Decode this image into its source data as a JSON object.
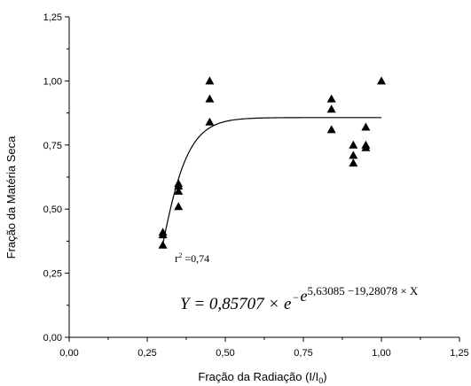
{
  "chart_data": {
    "type": "scatter",
    "xlabel": "Fração da Radiação (I/I",
    "xlabel_sub": "0",
    "xlabel_close": ")",
    "ylabel": "Fração da Matéria Seca",
    "xlim": [
      0.0,
      1.25
    ],
    "ylim": [
      0.0,
      1.25
    ],
    "x_ticks": [
      "0,00",
      "0,25",
      "0,50",
      "0,75",
      "1,00",
      "1,25"
    ],
    "y_ticks": [
      "0,00",
      "0,25",
      "0,50",
      "0,75",
      "1,00",
      "1,25"
    ],
    "grid": false,
    "marker": "triangle",
    "color": "#000000",
    "points": [
      {
        "x": 0.3,
        "y": 0.41
      },
      {
        "x": 0.3,
        "y": 0.4
      },
      {
        "x": 0.3,
        "y": 0.36
      },
      {
        "x": 0.35,
        "y": 0.6
      },
      {
        "x": 0.35,
        "y": 0.59
      },
      {
        "x": 0.35,
        "y": 0.57
      },
      {
        "x": 0.35,
        "y": 0.51
      },
      {
        "x": 0.45,
        "y": 1.0
      },
      {
        "x": 0.45,
        "y": 0.93
      },
      {
        "x": 0.45,
        "y": 0.84
      },
      {
        "x": 0.84,
        "y": 0.93
      },
      {
        "x": 0.84,
        "y": 0.89
      },
      {
        "x": 0.84,
        "y": 0.81
      },
      {
        "x": 0.91,
        "y": 0.75
      },
      {
        "x": 0.91,
        "y": 0.71
      },
      {
        "x": 0.91,
        "y": 0.68
      },
      {
        "x": 0.95,
        "y": 0.82
      },
      {
        "x": 0.95,
        "y": 0.75
      },
      {
        "x": 0.95,
        "y": 0.74
      },
      {
        "x": 1.0,
        "y": 1.0
      }
    ],
    "fit": {
      "a": 0.85707,
      "b": 5.63085,
      "c": 19.28078,
      "x_range": [
        0.3,
        1.0
      ]
    },
    "r2_text": {
      "r": "r",
      "sup": "2",
      "value": " =0,74"
    },
    "equation": {
      "lhs": "Y = 0,85707 × e",
      "neg": "−",
      "base": "e",
      "exponent": "5,63085 −19,28078 × X"
    }
  }
}
